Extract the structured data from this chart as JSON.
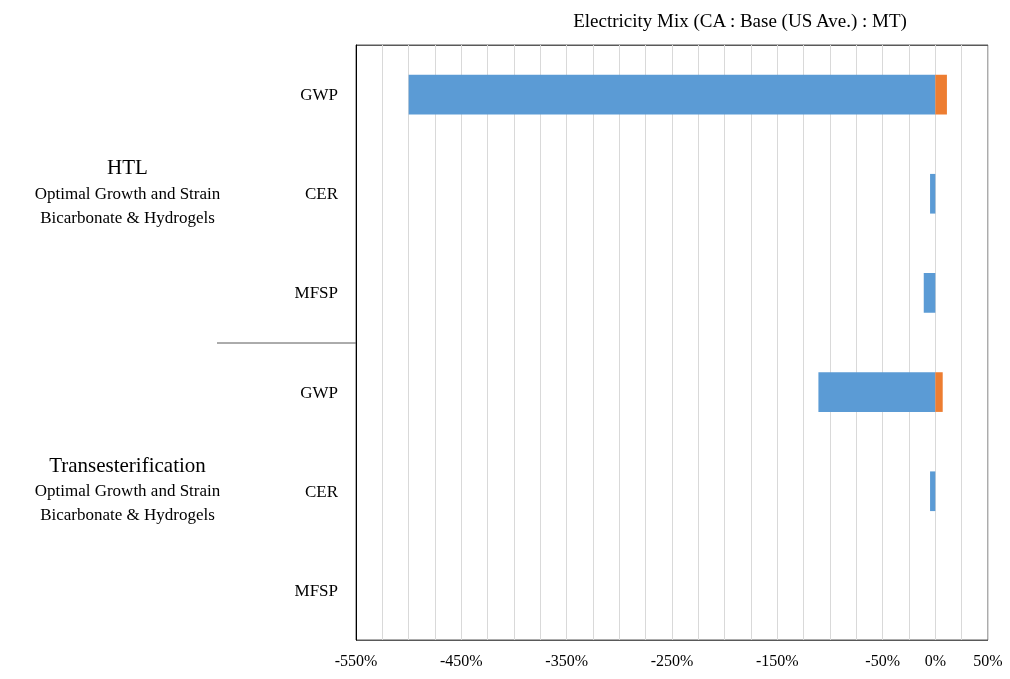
{
  "chart_data": {
    "type": "bar",
    "orientation": "horizontal",
    "stacked": true,
    "title": "Electricity Mix (CA : Base (US Ave.) : MT)",
    "categories": [
      "GWP",
      "CER",
      "MFSP",
      "GWP",
      "CER",
      "MFSP"
    ],
    "series": [
      {
        "color": "#5b9bd5",
        "values": [
          -500,
          -5,
          -11,
          -111,
          -5,
          null
        ]
      },
      {
        "color": "#ed7d31",
        "values": [
          11,
          null,
          null,
          7,
          null,
          null
        ]
      }
    ],
    "xlim": [
      -550,
      50
    ],
    "xticks": [
      {
        "value": -550,
        "label": "-550%"
      },
      {
        "value": -525,
        "label": null
      },
      {
        "value": -500,
        "label": null
      },
      {
        "value": -475,
        "label": null
      },
      {
        "value": -450,
        "label": "-450%"
      },
      {
        "value": -425,
        "label": null
      },
      {
        "value": -400,
        "label": null
      },
      {
        "value": -375,
        "label": null
      },
      {
        "value": -350,
        "label": "-350%"
      },
      {
        "value": -325,
        "label": null
      },
      {
        "value": -300,
        "label": null
      },
      {
        "value": -275,
        "label": null
      },
      {
        "value": -250,
        "label": "-250%"
      },
      {
        "value": -225,
        "label": null
      },
      {
        "value": -200,
        "label": null
      },
      {
        "value": -175,
        "label": null
      },
      {
        "value": -150,
        "label": "-150%"
      },
      {
        "value": -125,
        "label": null
      },
      {
        "value": -100,
        "label": null
      },
      {
        "value": -75,
        "label": null
      },
      {
        "value": -50,
        "label": "-50%"
      },
      {
        "value": -25,
        "label": null
      },
      {
        "value": 0,
        "label": "0%"
      },
      {
        "value": 25,
        "label": null
      },
      {
        "value": 50,
        "label": "50%"
      }
    ],
    "grid": "x",
    "annotations": [
      "HTL\nOptimal Growth and Strain\nBicarbonate & Hydrogels",
      "Transesterification\nOptimal Growth and Strain\nBicarbonate & Hydrogels"
    ]
  }
}
